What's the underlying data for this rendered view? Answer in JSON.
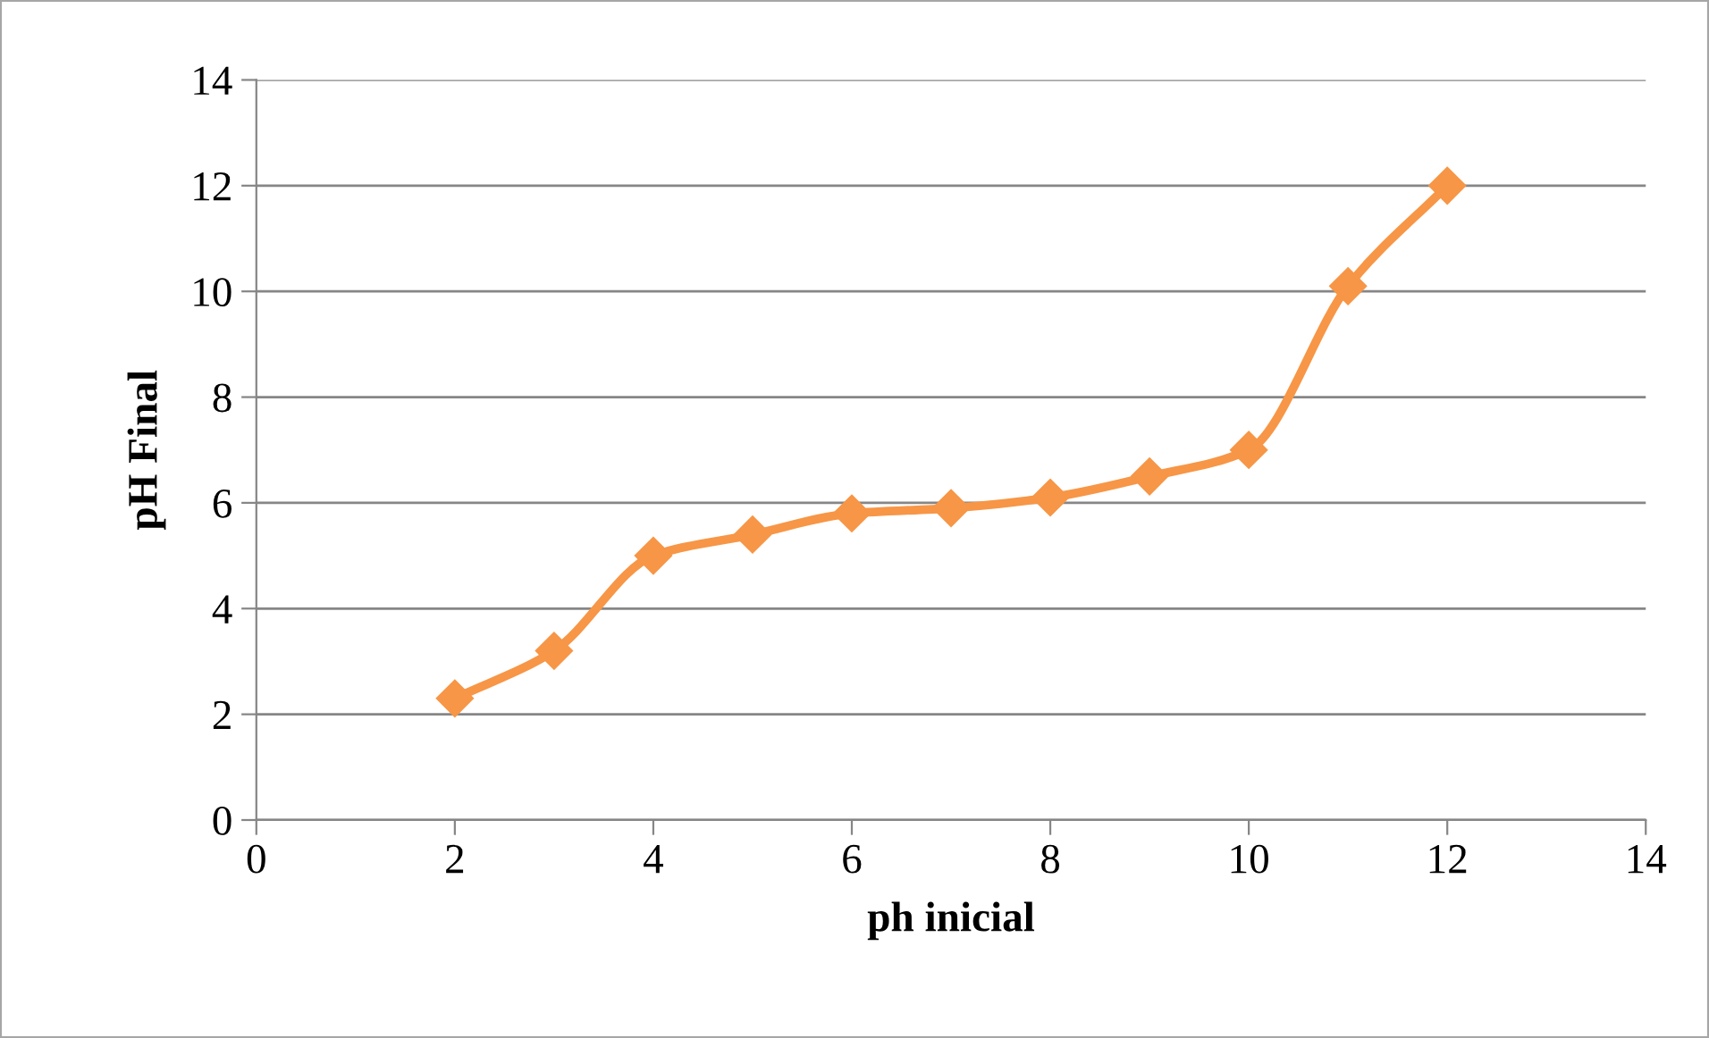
{
  "chart_data": {
    "type": "line",
    "xlabel": "ph inicial",
    "ylabel": "pH Final",
    "x": [
      2,
      3,
      4,
      5,
      6,
      7,
      8,
      9,
      10,
      11,
      12
    ],
    "series": [
      {
        "color": "#f79646",
        "values": [
          2.3,
          3.2,
          5.0,
          5.4,
          5.8,
          5.9,
          6.1,
          6.5,
          7.0,
          10.1,
          12.0
        ]
      }
    ],
    "xlim": [
      0,
      14
    ],
    "xticks": [
      0,
      2,
      4,
      6,
      8,
      10,
      12,
      14
    ],
    "ylim": [
      0,
      14
    ],
    "yticks": [
      0,
      2,
      4,
      6,
      8,
      10,
      12,
      14
    ],
    "grid": "y",
    "marker": "diamond",
    "line_style": "solid"
  }
}
